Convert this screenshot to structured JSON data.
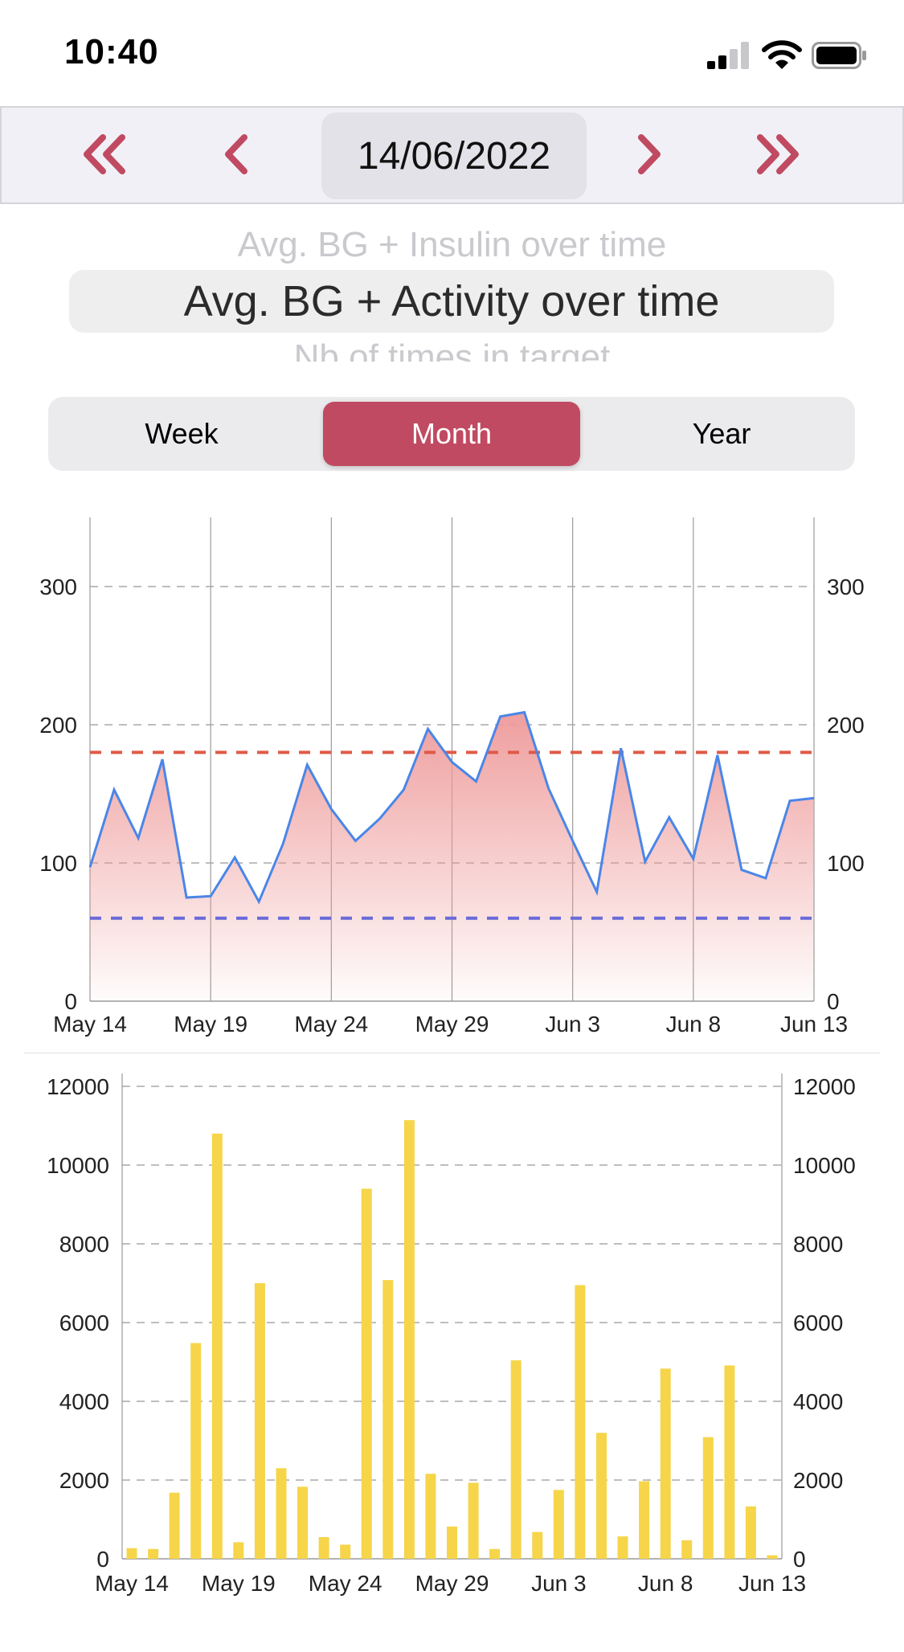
{
  "status": {
    "time": "10:40"
  },
  "date_nav": {
    "date": "14/06/2022",
    "accent_color": "#c04a61",
    "first_icon": "double-chevron-left-icon",
    "prev_icon": "chevron-left-icon",
    "next_icon": "chevron-right-icon",
    "last_icon": "double-chevron-right-icon"
  },
  "picker": {
    "above": "Avg. BG + Insulin over time",
    "selected": "Avg. BG + Activity over time",
    "below": "Nb of times in target"
  },
  "segments": {
    "items": [
      "Week",
      "Month",
      "Year"
    ],
    "selected": "Month",
    "selected_color": "#c04a61"
  },
  "chart_data": [
    {
      "type": "area",
      "x_tick_labels": [
        "May 14",
        "May 19",
        "May 24",
        "May 29",
        "Jun 3",
        "Jun 8",
        "Jun 13"
      ],
      "y_ticks": [
        0,
        100,
        200,
        300
      ],
      "ylim": [
        0,
        350
      ],
      "x_range": [
        0,
        30
      ],
      "series": [
        {
          "values": [
            97,
            153,
            118,
            175,
            75,
            76,
            104,
            72,
            114,
            171,
            139,
            116,
            132,
            153,
            197,
            173,
            159,
            206,
            209,
            154,
            116,
            79,
            183,
            101,
            133,
            103,
            178,
            95,
            89,
            145,
            147
          ],
          "color": "#4a86e8",
          "fill_color": "#ee9999"
        }
      ],
      "reference_lines": [
        {
          "value": 180,
          "color": "#e05a47"
        },
        {
          "value": 60,
          "color": "#6a6ad8"
        }
      ],
      "grid": true
    },
    {
      "type": "bar",
      "x_tick_labels": [
        "May 14",
        "May 19",
        "May 24",
        "May 29",
        "Jun 3",
        "Jun 8",
        "Jun 13"
      ],
      "y_ticks": [
        0,
        2000,
        4000,
        6000,
        8000,
        10000,
        12000
      ],
      "ylim": [
        0,
        12000
      ],
      "series": [
        {
          "values": [
            270,
            250,
            1680,
            5480,
            10800,
            420,
            7000,
            2300,
            1830,
            550,
            360,
            9400,
            7080,
            11140,
            2160,
            820,
            1930,
            250,
            5040,
            680,
            1750,
            6950,
            3200,
            570,
            1970,
            4830,
            470,
            3090,
            4910,
            1330,
            90
          ],
          "color": "#f6d54a"
        }
      ],
      "grid": true
    }
  ]
}
